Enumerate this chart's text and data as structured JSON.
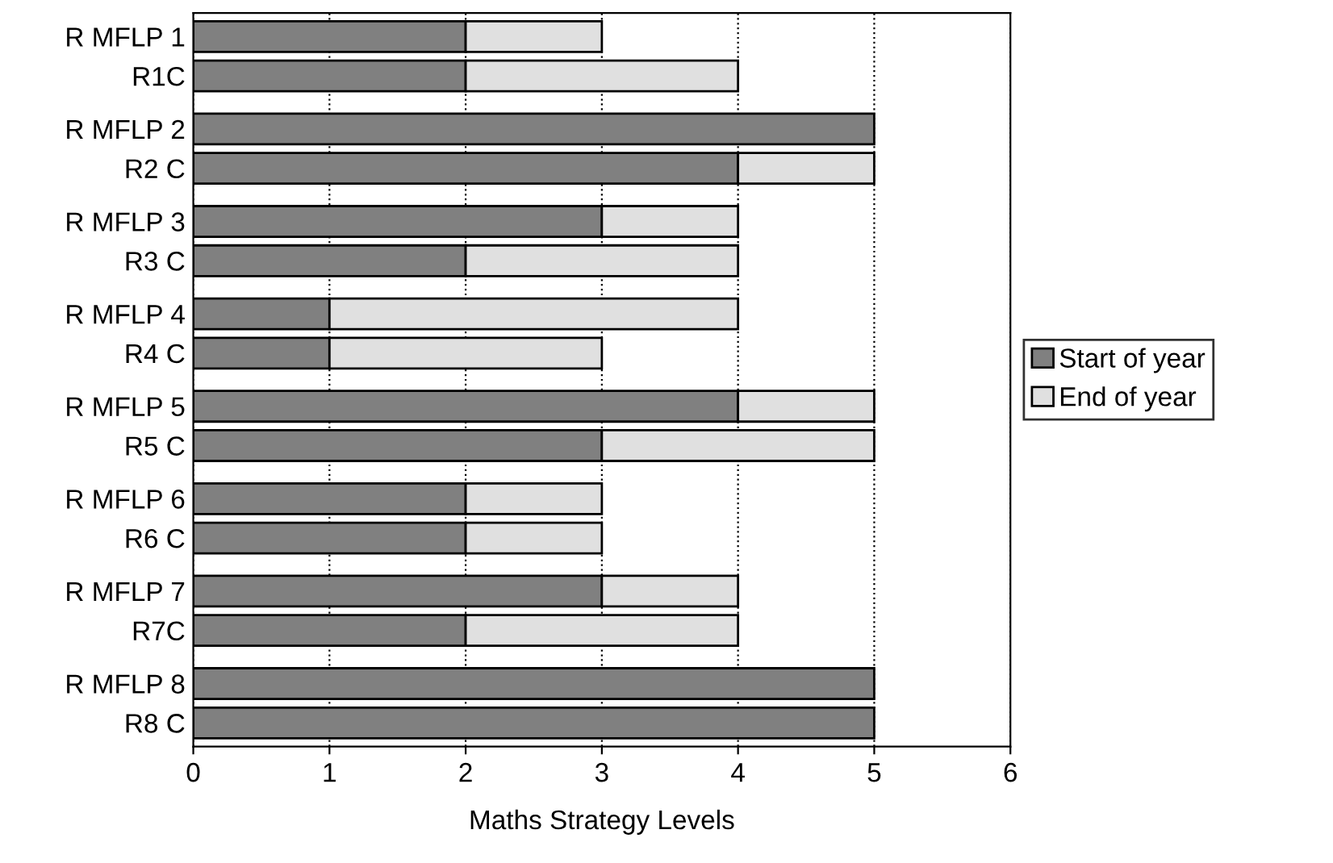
{
  "chart_data": {
    "type": "bar",
    "orientation": "horizontal",
    "stacked": true,
    "xlabel": "Maths Strategy Levels",
    "categories": [
      "R MFLP 1",
      "R1C",
      "R MFLP 2",
      "R2 C",
      "R MFLP 3",
      "R3 C",
      "R MFLP 4",
      "R4 C",
      "R MFLP 5",
      "R5 C",
      "R MFLP 6",
      "R6 C",
      "R MFLP 7",
      "R7C",
      "R MFLP 8",
      "R8 C"
    ],
    "series": [
      {
        "name": "Start of year",
        "color": "#808080",
        "values": [
          2,
          2,
          5,
          4,
          3,
          2,
          1,
          1,
          4,
          3,
          2,
          2,
          3,
          2,
          5,
          5
        ]
      },
      {
        "name": "End of year",
        "color": "#e0e0e0",
        "values": [
          1,
          2,
          null,
          1,
          1,
          2,
          3,
          2,
          1,
          2,
          1,
          1,
          1,
          2,
          null,
          null
        ]
      }
    ],
    "xlim": [
      0,
      6
    ],
    "xticks": [
      0,
      1,
      2,
      3,
      4,
      5,
      6
    ],
    "grid": "x",
    "legend": "right"
  }
}
